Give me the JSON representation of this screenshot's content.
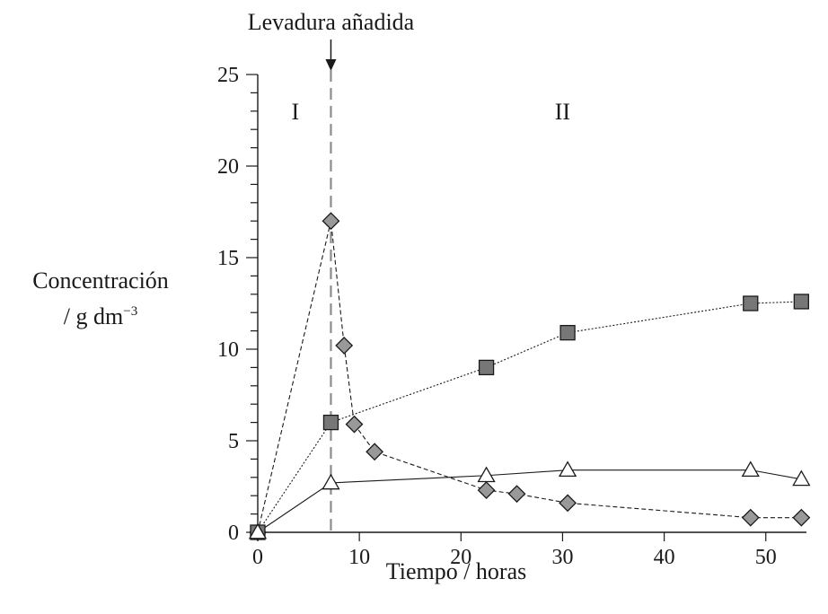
{
  "chart_data": {
    "type": "line",
    "title": "",
    "xlabel": "Tiempo / horas",
    "ylabel_line1": "Concentración",
    "ylabel_prefix": "/ g dm",
    "ylabel_exponent": "−3",
    "xlim": [
      0,
      54
    ],
    "ylim": [
      0,
      25
    ],
    "x_ticks": [
      "0",
      "10",
      "20",
      "30",
      "40",
      "50"
    ],
    "y_ticks": [
      "0",
      "5",
      "10",
      "15",
      "20",
      "25"
    ],
    "x_tick_values": [
      0,
      10,
      20,
      30,
      40,
      50
    ],
    "y_tick_values": [
      0,
      5,
      10,
      15,
      20,
      25
    ],
    "y_minor_step": 1,
    "grid": false,
    "annotation": {
      "text": "Levadura añadida",
      "x": 7.2
    },
    "regions": [
      {
        "label": "I",
        "x": 3.7,
        "y": 23
      },
      {
        "label": "II",
        "x": 30,
        "y": 23
      }
    ],
    "series": [
      {
        "marker": "diamond",
        "line_style": "dashed",
        "color": "#999999",
        "x": [
          0,
          7.2,
          8.5,
          9.5,
          11.5,
          22.5,
          25.5,
          30.5,
          48.5,
          53.5
        ],
        "y": [
          0,
          17,
          10.2,
          5.9,
          4.4,
          2.3,
          2.1,
          1.6,
          0.8,
          0.8
        ]
      },
      {
        "marker": "square",
        "line_style": "dotted",
        "color": "#777777",
        "x": [
          0,
          7.2,
          22.5,
          30.5,
          48.5,
          53.5
        ],
        "y": [
          0,
          6.0,
          9.0,
          10.9,
          12.5,
          12.6
        ]
      },
      {
        "marker": "triangle",
        "line_style": "solid",
        "color": "#ffffff",
        "x": [
          0,
          7.2,
          22.5,
          30.5,
          48.5,
          53.5
        ],
        "y": [
          0,
          2.7,
          3.1,
          3.4,
          3.4,
          2.9
        ]
      }
    ]
  }
}
